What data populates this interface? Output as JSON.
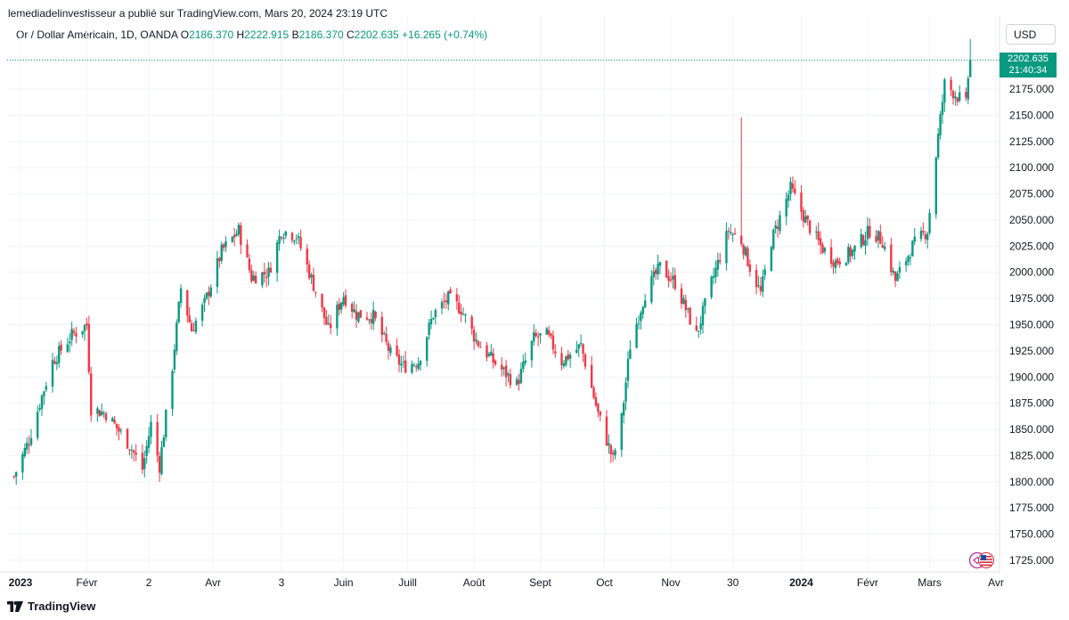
{
  "header": {
    "attribution": "lemediadelinvestisseur a publié sur TradingView.com, Mars 20, 2024 23:19 UTC"
  },
  "symbol": {
    "name": "Or / Dollar Américain, 1D, OANDA",
    "open_label": "O",
    "open": "2186.370",
    "high_label": "H",
    "high": "2222.915",
    "low_label": "B",
    "low": "2186.370",
    "close_label": "C",
    "close": "2202.635",
    "change": "+16.265 (+0.74%)"
  },
  "currency_button": "USD",
  "price_tag": {
    "price": "2202.635",
    "countdown": "21:40:34"
  },
  "footer": {
    "brand": "TradingView"
  },
  "colors": {
    "up": "#089981",
    "down": "#F23645",
    "grid": "#F0F3FA",
    "text": "#131722"
  },
  "icons": {
    "logo": "tradingview-logo-icon",
    "flag": "us-flag-icon"
  },
  "chart_data": {
    "type": "candlestick",
    "instrument": "Or / Dollar Américain",
    "timeframe": "1D",
    "source": "OANDA",
    "ylim": [
      1700,
      2230
    ],
    "y_ticks": [
      "1725.000",
      "1750.000",
      "1775.000",
      "1800.000",
      "1825.000",
      "1850.000",
      "1875.000",
      "1900.000",
      "1925.000",
      "1950.000",
      "1975.000",
      "2000.000",
      "2025.000",
      "2050.000",
      "2075.000",
      "2100.000",
      "2125.000",
      "2150.000",
      "2175.000"
    ],
    "x_ticks": [
      {
        "label": "2023",
        "date": "2023-01-01",
        "bold": true
      },
      {
        "label": "Févr",
        "date": "2023-02-01"
      },
      {
        "label": "2",
        "date": "2023-03-02"
      },
      {
        "label": "Avr",
        "date": "2023-04-01"
      },
      {
        "label": "3",
        "date": "2023-05-03"
      },
      {
        "label": "Juin",
        "date": "2023-06-01"
      },
      {
        "label": "Juill",
        "date": "2023-07-01"
      },
      {
        "label": "Août",
        "date": "2023-08-01"
      },
      {
        "label": "Sept",
        "date": "2023-09-01"
      },
      {
        "label": "Oct",
        "date": "2023-10-01"
      },
      {
        "label": "Nov",
        "date": "2023-11-01"
      },
      {
        "label": "30",
        "date": "2023-11-30"
      },
      {
        "label": "2024",
        "date": "2024-01-01",
        "bold": true
      },
      {
        "label": "Févr",
        "date": "2024-02-01"
      },
      {
        "label": "Mars",
        "date": "2024-03-01"
      },
      {
        "label": "Avr",
        "date": "2024-04-01"
      }
    ],
    "close_path": [
      [
        "2022-12-29",
        1805
      ],
      [
        "2023-01-05",
        1840
      ],
      [
        "2023-01-10",
        1875
      ],
      [
        "2023-01-16",
        1915
      ],
      [
        "2023-01-25",
        1940
      ],
      [
        "2023-02-01",
        1950
      ],
      [
        "2023-02-03",
        1870
      ],
      [
        "2023-02-10",
        1865
      ],
      [
        "2023-02-21",
        1835
      ],
      [
        "2023-02-27",
        1812
      ],
      [
        "2023-03-03",
        1855
      ],
      [
        "2023-03-07",
        1815
      ],
      [
        "2023-03-13",
        1910
      ],
      [
        "2023-03-17",
        1985
      ],
      [
        "2023-03-22",
        1945
      ],
      [
        "2023-03-28",
        1970
      ],
      [
        "2023-04-05",
        2020
      ],
      [
        "2023-04-13",
        2040
      ],
      [
        "2023-04-19",
        1995
      ],
      [
        "2023-04-27",
        2000
      ],
      [
        "2023-05-03",
        2040
      ],
      [
        "2023-05-10",
        2035
      ],
      [
        "2023-05-16",
        2000
      ],
      [
        "2023-05-25",
        1945
      ],
      [
        "2023-06-01",
        1978
      ],
      [
        "2023-06-07",
        1960
      ],
      [
        "2023-06-15",
        1958
      ],
      [
        "2023-06-23",
        1922
      ],
      [
        "2023-06-29",
        1910
      ],
      [
        "2023-07-06",
        1915
      ],
      [
        "2023-07-13",
        1960
      ],
      [
        "2023-07-20",
        1975
      ],
      [
        "2023-07-26",
        1965
      ],
      [
        "2023-08-02",
        1935
      ],
      [
        "2023-08-10",
        1915
      ],
      [
        "2023-08-21",
        1893
      ],
      [
        "2023-08-29",
        1937
      ],
      [
        "2023-09-04",
        1940
      ],
      [
        "2023-09-11",
        1915
      ],
      [
        "2023-09-20",
        1930
      ],
      [
        "2023-09-28",
        1865
      ],
      [
        "2023-10-05",
        1821
      ],
      [
        "2023-10-09",
        1860
      ],
      [
        "2023-10-13",
        1930
      ],
      [
        "2023-10-20",
        1980
      ],
      [
        "2023-10-27",
        2005
      ],
      [
        "2023-11-03",
        1990
      ],
      [
        "2023-11-13",
        1940
      ],
      [
        "2023-11-20",
        1990
      ],
      [
        "2023-11-28",
        2040
      ],
      [
        "2023-12-04",
        2030
      ],
      [
        "2023-12-08",
        2005
      ],
      [
        "2023-12-13",
        1980
      ],
      [
        "2023-12-18",
        2030
      ],
      [
        "2023-12-27",
        2080
      ],
      [
        "2024-01-03",
        2050
      ],
      [
        "2024-01-10",
        2025
      ],
      [
        "2024-01-17",
        2010
      ],
      [
        "2024-01-25",
        2020
      ],
      [
        "2024-02-02",
        2040
      ],
      [
        "2024-02-08",
        2030
      ],
      [
        "2024-02-14",
        1992
      ],
      [
        "2024-02-22",
        2025
      ],
      [
        "2024-02-29",
        2040
      ],
      [
        "2024-03-05",
        2130
      ],
      [
        "2024-03-08",
        2180
      ],
      [
        "2024-03-13",
        2170
      ],
      [
        "2024-03-18",
        2160
      ],
      [
        "2024-03-19",
        2186.37
      ],
      [
        "2024-03-20",
        2202.635
      ]
    ],
    "last": {
      "open": 2186.37,
      "high": 2222.915,
      "low": 2186.37,
      "close": 2202.635
    }
  }
}
